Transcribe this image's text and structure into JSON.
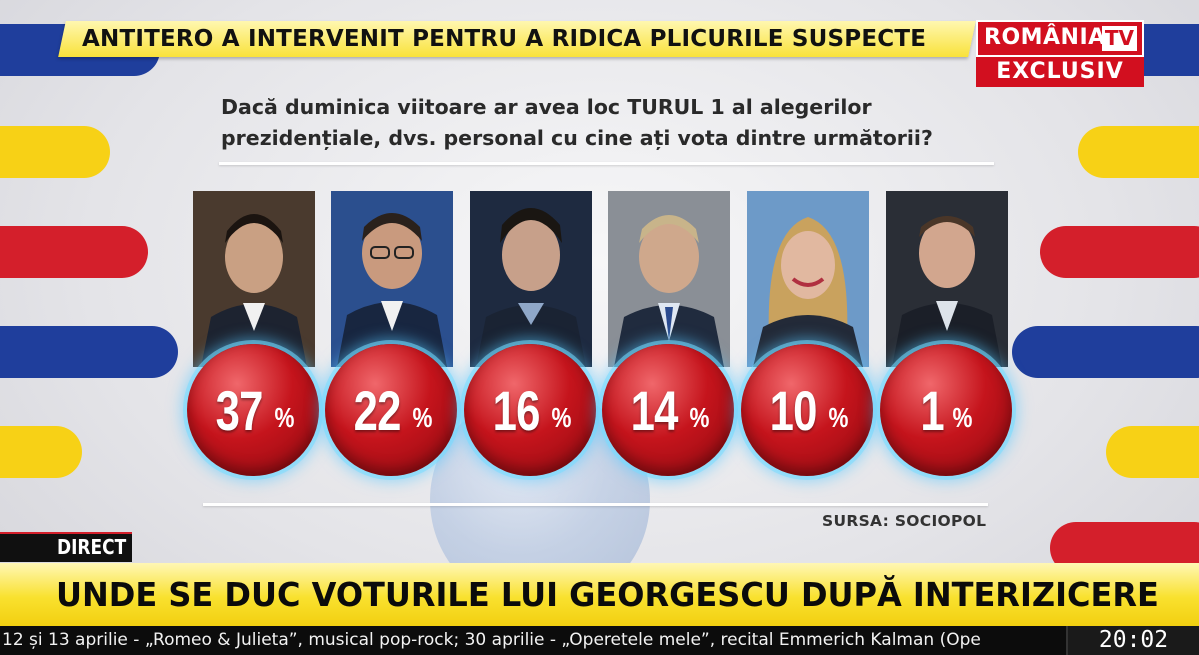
{
  "top_banner": {
    "headline": "ANTITERO A INTERVENIT PENTRU A RIDICA PLICURILE SUSPECTE"
  },
  "logo": {
    "channel": "ROMÂNIA",
    "tv": "TV",
    "badge": "EXCLUSIV"
  },
  "poll": {
    "question": "Dacă duminica viitoare ar avea loc TURUL 1 al alegerilor prezidențiale, dvs. personal cu cine ați vota dintre următorii?",
    "percent_sign": "%",
    "candidates": [
      {
        "value": "37",
        "photo": "candidate-1-photo"
      },
      {
        "value": "22",
        "photo": "candidate-2-photo"
      },
      {
        "value": "16",
        "photo": "candidate-3-photo"
      },
      {
        "value": "14",
        "photo": "candidate-4-photo"
      },
      {
        "value": "10",
        "photo": "candidate-5-photo"
      },
      {
        "value": "1",
        "photo": "candidate-6-photo"
      }
    ],
    "source": "SURSA: SOCIOPOL"
  },
  "lower_third": {
    "live_tag": "DIRECT",
    "headline": "UNDE SE DUC VOTURILE LUI GEORGESCU DUPĂ INTERIZICERE",
    "crawl": "12 și 13 aprilie - „Romeo & Julieta”, musical pop-rock; 30 aprilie - „Operetele mele”, recital Emmerich Kalman (Ope",
    "clock": "20:02"
  },
  "colors": {
    "brand_red": "#d20f1f",
    "flag_blue": "#1f3e9c",
    "flag_yellow": "#f7d116",
    "flag_red": "#d41f2b",
    "bubble_red": "#c5141c"
  }
}
